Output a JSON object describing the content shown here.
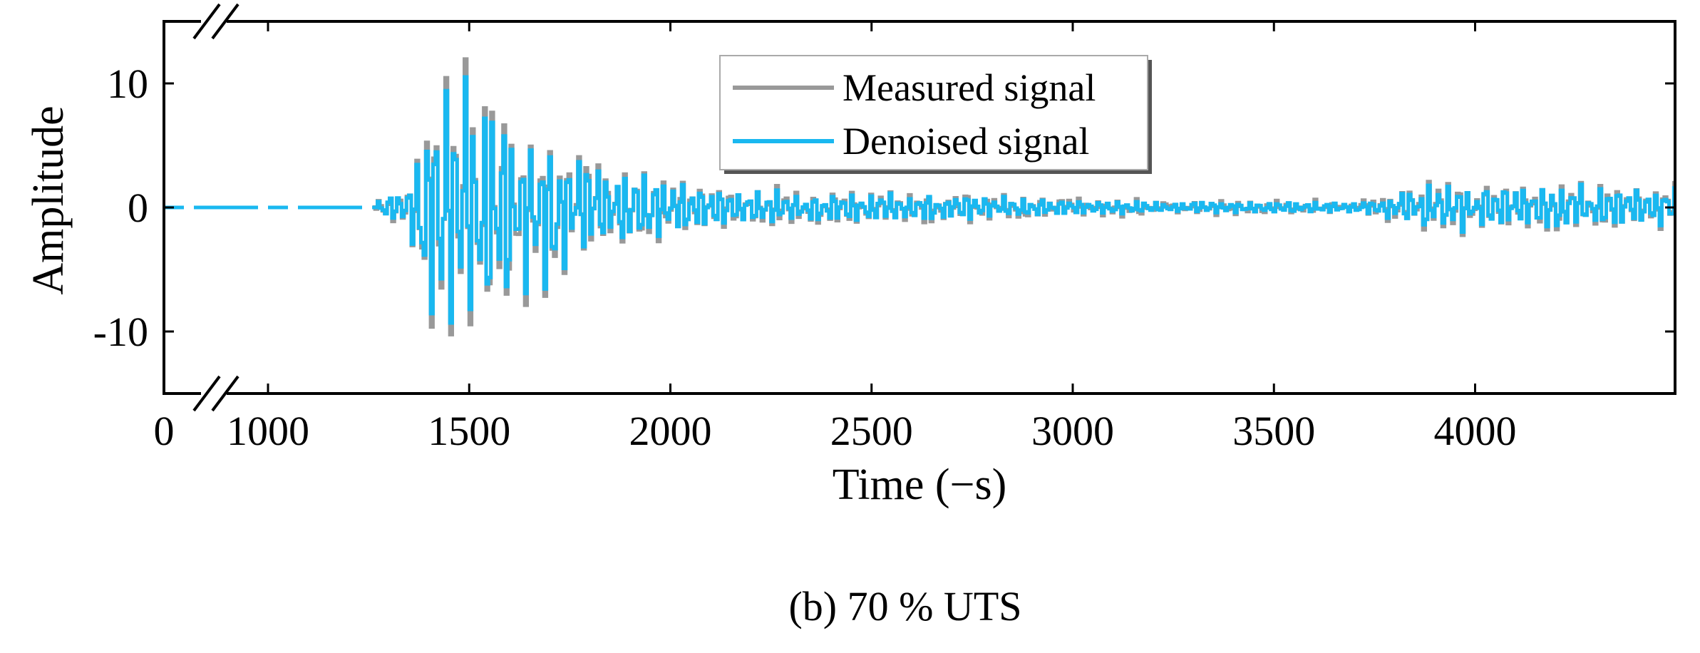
{
  "chart_data": {
    "type": "line",
    "caption": "(b) 70 % UTS",
    "xlabel": "Time (−s)",
    "ylabel": "Amplitude",
    "xlim": [
      0,
      4500
    ],
    "ylim": [
      -15,
      15
    ],
    "x_axis_break": true,
    "x_ticks": [
      {
        "value": 0,
        "label": "0"
      },
      {
        "value": 1000,
        "label": "1000"
      },
      {
        "value": 1500,
        "label": "1500"
      },
      {
        "value": 2000,
        "label": "2000"
      },
      {
        "value": 2500,
        "label": "2500"
      },
      {
        "value": 3000,
        "label": "3000"
      },
      {
        "value": 3500,
        "label": "3500"
      },
      {
        "value": 4000,
        "label": "4000"
      }
    ],
    "y_ticks": [
      {
        "value": 10,
        "label": "10"
      },
      {
        "value": 0,
        "label": "0"
      },
      {
        "value": -10,
        "label": "-10"
      }
    ],
    "grid": false,
    "legend": {
      "position": "top-center",
      "entries": [
        {
          "label": "Measured signal",
          "color": "#999999"
        },
        {
          "label": "Denoised signal",
          "color": "#1ab8f0"
        }
      ]
    },
    "envelope": {
      "description_points": [
        [
          1270,
          0.6
        ],
        [
          1350,
          1.5
        ],
        [
          1390,
          7.5
        ],
        [
          1420,
          9.0
        ],
        [
          1450,
          8.5
        ],
        [
          1490,
          9.5
        ],
        [
          1550,
          7.5
        ],
        [
          1600,
          6.5
        ],
        [
          1660,
          6.0
        ],
        [
          1700,
          5.5
        ],
        [
          1760,
          4.0
        ],
        [
          1850,
          3.0
        ],
        [
          1950,
          2.4
        ],
        [
          2050,
          1.6
        ],
        [
          2150,
          1.2
        ],
        [
          2300,
          1.0
        ],
        [
          2500,
          0.9
        ],
        [
          2800,
          0.8
        ],
        [
          3000,
          0.5
        ],
        [
          3200,
          0.4
        ],
        [
          3500,
          0.35
        ],
        [
          3750,
          0.4
        ],
        [
          3820,
          1.2
        ],
        [
          3900,
          1.6
        ],
        [
          4100,
          1.6
        ],
        [
          4300,
          1.4
        ],
        [
          4500,
          1.3
        ]
      ]
    }
  }
}
